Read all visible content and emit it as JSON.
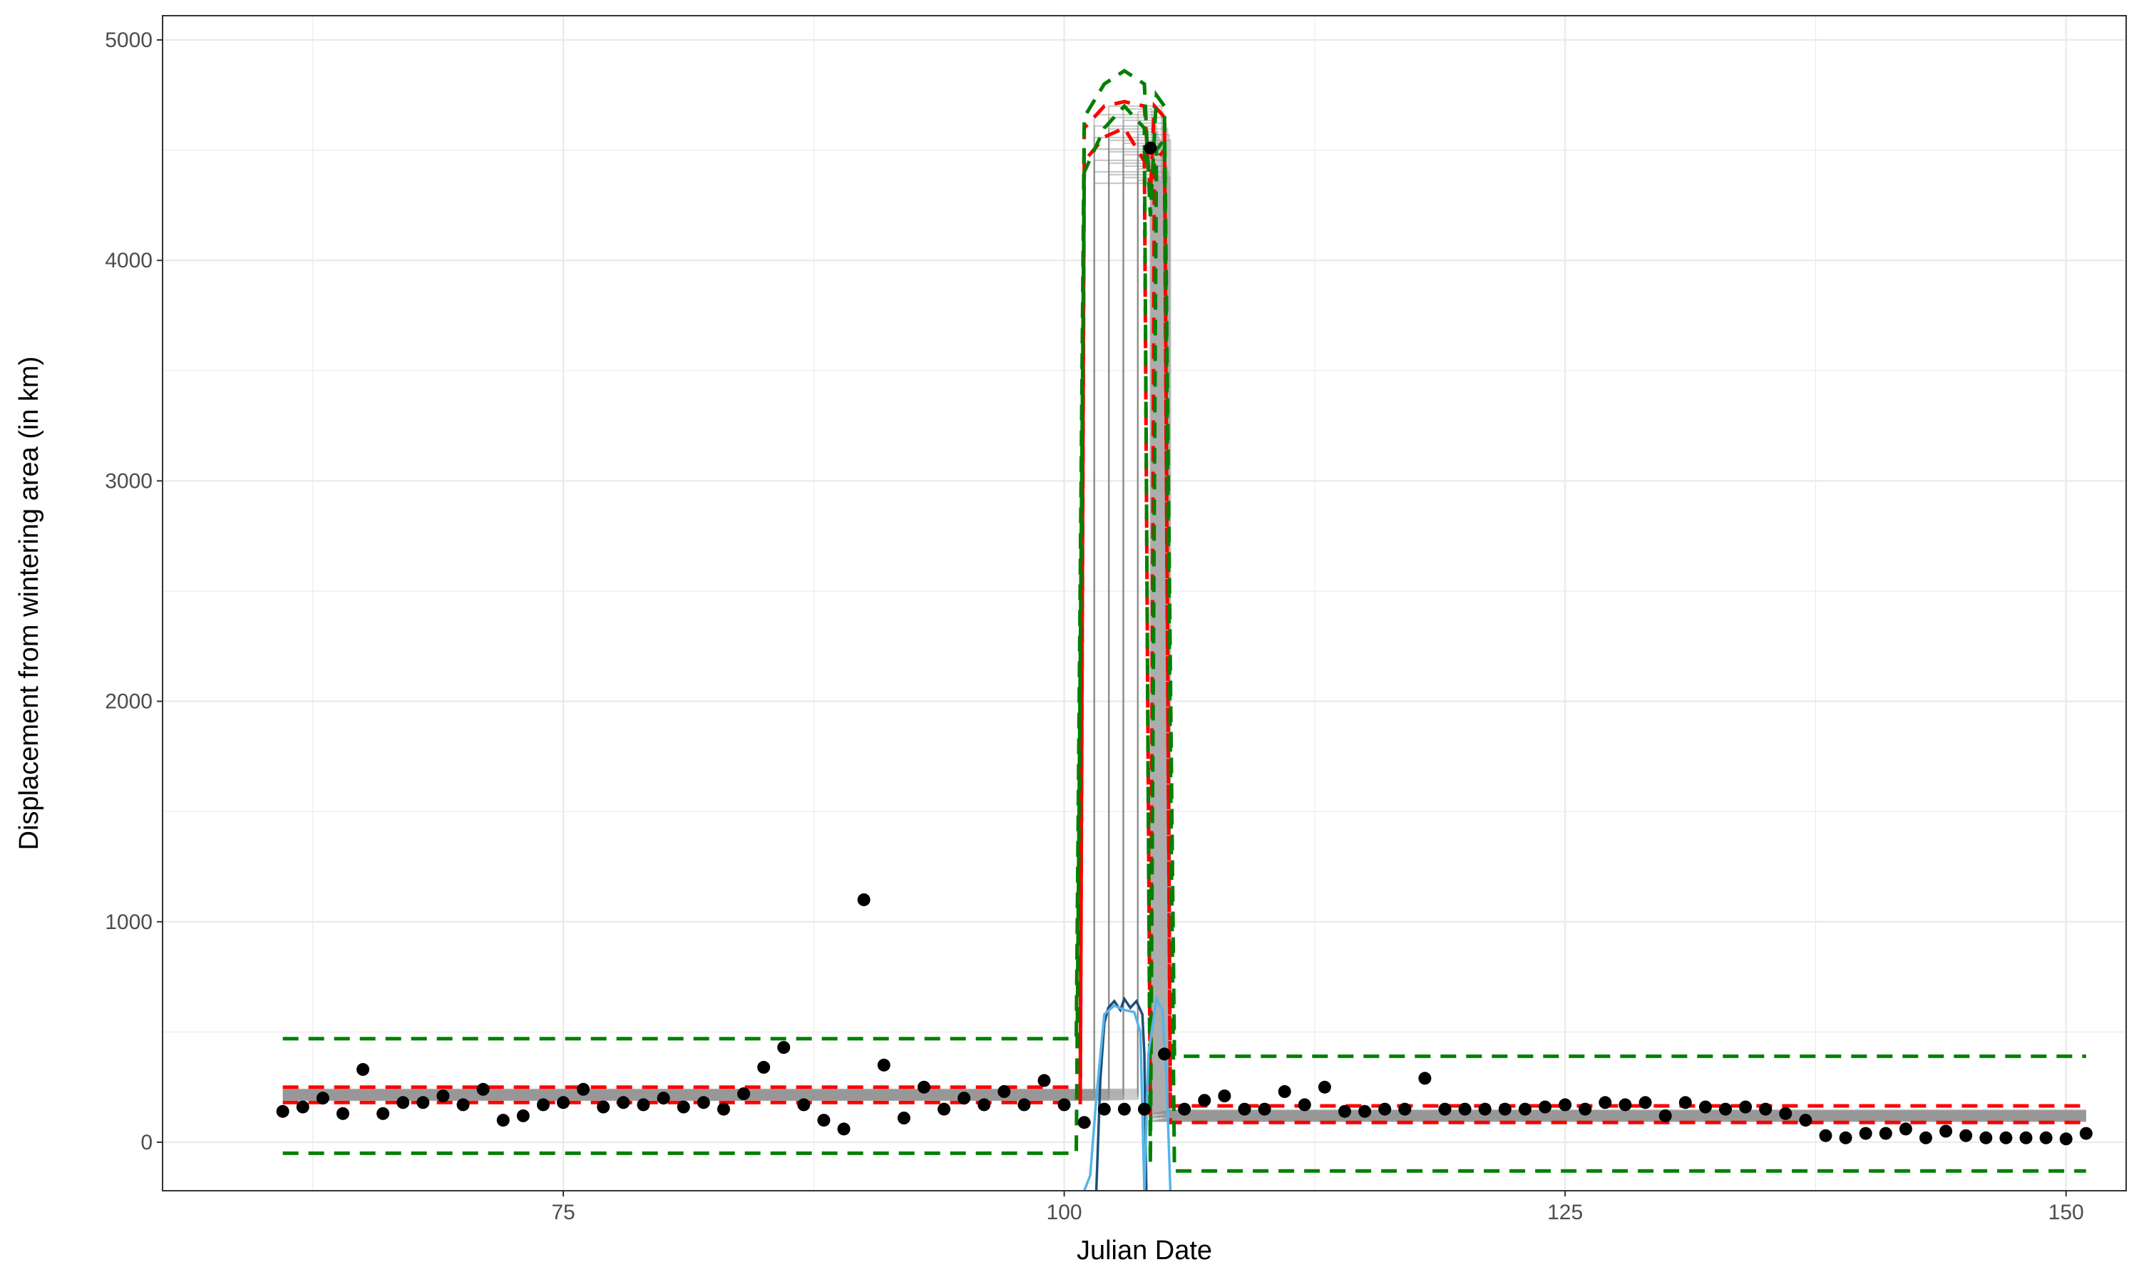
{
  "chart_data": {
    "type": "scatter",
    "title": "",
    "xlabel": "Julian Date",
    "ylabel": "Displacement from wintering area (in km)",
    "xlim": [
      55,
      153
    ],
    "ylim": [
      -220,
      5110
    ],
    "x_ticks": [
      75,
      100,
      125,
      150
    ],
    "x_tick_labels": [
      "75",
      "100",
      "125",
      "150"
    ],
    "y_ticks": [
      0,
      1000,
      2000,
      3000,
      4000,
      5000
    ],
    "y_tick_labels": [
      "0",
      "1000",
      "2000",
      "3000",
      "4000",
      "5000"
    ],
    "grid": true,
    "legend": "none",
    "colors": {
      "points": "#000000",
      "posterior_draws": "#8c8c8c",
      "fit_interval": "#ff0000",
      "prediction_interval": "#008000",
      "transition_curve_dark": "#1f4e79",
      "transition_curve_light": "#56b4e9",
      "grid": "#ebebeb",
      "panel_border": "#333333"
    },
    "series": [
      {
        "type": "scatter",
        "x": [
          61,
          62,
          63,
          64,
          65,
          66,
          67,
          68,
          69,
          70,
          71,
          72,
          73,
          74,
          75,
          76,
          77,
          78,
          79,
          80,
          81,
          82,
          83,
          84,
          85,
          86,
          87,
          88,
          89,
          90,
          91,
          92,
          93,
          94,
          95,
          96,
          97,
          98,
          99,
          100,
          101,
          102,
          103,
          104,
          104.3,
          105,
          106,
          107,
          108,
          109,
          110,
          111,
          112,
          113,
          114,
          115,
          116,
          117,
          118,
          119,
          120,
          121,
          122,
          123,
          124,
          125,
          126,
          127,
          128,
          129,
          130,
          131,
          132,
          133,
          134,
          135,
          136,
          137,
          138,
          139,
          140,
          141,
          142,
          143,
          144,
          145,
          146,
          147,
          148,
          149,
          150,
          151
        ],
        "y": [
          140,
          160,
          200,
          130,
          330,
          130,
          180,
          180,
          210,
          170,
          240,
          100,
          120,
          170,
          180,
          240,
          160,
          180,
          170,
          200,
          160,
          180,
          150,
          220,
          340,
          430,
          170,
          100,
          60,
          1100,
          350,
          110,
          250,
          150,
          200,
          170,
          230,
          170,
          280,
          170,
          90,
          150,
          150,
          150,
          4510,
          400,
          150,
          190,
          210,
          150,
          150,
          230,
          170,
          250,
          140,
          140,
          150,
          150,
          290,
          150,
          150,
          150,
          150,
          150,
          160,
          170,
          150,
          180,
          170,
          180,
          120,
          180,
          160,
          150,
          160,
          150,
          130,
          100,
          30,
          20,
          40,
          40,
          60,
          20,
          50,
          30,
          20,
          20,
          20,
          20,
          15,
          40
        ]
      },
      {
        "name": "",
        "type": "step",
        "before_level": 215,
        "peak_level": 4550,
        "after_level": 120,
        "start_x_range": [
          101.5,
          104.3
        ],
        "end_x_range": [
          104.3,
          105.3
        ]
      },
      {
        "type": "band",
        "style": "dashed",
        "x": [
          61,
          100.8,
          101,
          102,
          103,
          104,
          104.3,
          104.5,
          105,
          105.3,
          151
        ],
        "lower": [
          180,
          180,
          4450,
          4560,
          4600,
          4450,
          120,
          4450,
          4500,
          90,
          90
        ],
        "upper": [
          250,
          250,
          4600,
          4700,
          4720,
          4700,
          4300,
          4700,
          4650,
          165,
          165
        ]
      },
      {
        "type": "band",
        "style": "dashed",
        "x": [
          61,
          100.6,
          101,
          102,
          103,
          104,
          104.3,
          104.6,
          105,
          105.5,
          151
        ],
        "lower": [
          -50,
          -50,
          4400,
          4600,
          4700,
          4600,
          -100,
          4500,
          4550,
          -130,
          -130
        ],
        "upper": [
          470,
          470,
          4650,
          4800,
          4860,
          4800,
          4200,
          4750,
          4700,
          390,
          390
        ]
      },
      {
        "type": "line",
        "x": [
          101.6,
          101.8,
          102,
          102.2,
          102.5,
          102.8,
          103,
          103.3,
          103.6,
          103.9,
          104,
          104.1
        ],
        "y": [
          -220,
          280,
          540,
          610,
          640,
          600,
          650,
          610,
          640,
          580,
          400,
          -220
        ]
      },
      {
        "type": "line",
        "x": [
          101,
          101.3,
          101.6,
          102,
          102.5,
          103,
          103.5,
          103.8,
          104,
          104.2,
          104.6,
          104.9,
          105.1,
          105.3
        ],
        "y": [
          -220,
          -150,
          200,
          580,
          620,
          600,
          590,
          500,
          -220,
          400,
          650,
          600,
          300,
          -220
        ]
      }
    ]
  }
}
